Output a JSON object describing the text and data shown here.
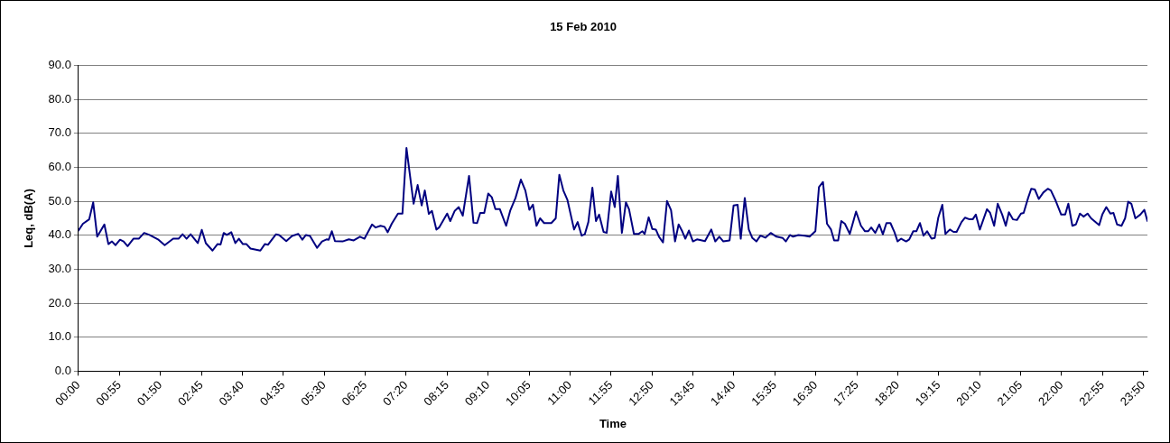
{
  "chart_data": {
    "type": "line",
    "title": "15 Feb 2010",
    "xlabel": "Time",
    "ylabel": "Leq, dB(A)",
    "xlim": [
      0,
      23.92
    ],
    "xticks": [
      {
        "value": 0,
        "label": "00:00"
      },
      {
        "value": 0.9167,
        "label": "00:55"
      },
      {
        "value": 1.8333,
        "label": "01:50"
      },
      {
        "value": 2.75,
        "label": "02:45"
      },
      {
        "value": 3.6667,
        "label": "03:40"
      },
      {
        "value": 4.5833,
        "label": "04:35"
      },
      {
        "value": 5.5,
        "label": "05:30"
      },
      {
        "value": 6.4167,
        "label": "06:25"
      },
      {
        "value": 7.3333,
        "label": "07:20"
      },
      {
        "value": 8.25,
        "label": "08:15"
      },
      {
        "value": 9.1667,
        "label": "09:10"
      },
      {
        "value": 10.0833,
        "label": "10:05"
      },
      {
        "value": 11,
        "label": "11:00"
      },
      {
        "value": 11.9167,
        "label": "11:55"
      },
      {
        "value": 12.8333,
        "label": "12:50"
      },
      {
        "value": 13.75,
        "label": "13:45"
      },
      {
        "value": 14.6667,
        "label": "14:40"
      },
      {
        "value": 15.5833,
        "label": "15:35"
      },
      {
        "value": 16.5,
        "label": "16:30"
      },
      {
        "value": 17.4167,
        "label": "17:25"
      },
      {
        "value": 18.3333,
        "label": "18:20"
      },
      {
        "value": 19.25,
        "label": "19:15"
      },
      {
        "value": 20.1667,
        "label": "20:10"
      },
      {
        "value": 21.0833,
        "label": "21:05"
      },
      {
        "value": 22,
        "label": "22:00"
      },
      {
        "value": 22.9167,
        "label": "22:55"
      },
      {
        "value": 23.8333,
        "label": "23:50"
      }
    ],
    "ylim": [
      0,
      90
    ],
    "yticks": [
      {
        "value": 0,
        "label": "0.0"
      },
      {
        "value": 10,
        "label": "10.0"
      },
      {
        "value": 20,
        "label": "20.0"
      },
      {
        "value": 30,
        "label": "30.0"
      },
      {
        "value": 40,
        "label": "40.0"
      },
      {
        "value": 50,
        "label": "50.0"
      },
      {
        "value": 60,
        "label": "60.0"
      },
      {
        "value": 70,
        "label": "70.0"
      },
      {
        "value": 80,
        "label": "80.0"
      },
      {
        "value": 90,
        "label": "90.0"
      }
    ],
    "grid": "y",
    "legend": false,
    "marker": "none",
    "line_style": "solid",
    "series": [
      {
        "color": "#000080",
        "x": [
          0,
          0.1,
          0.24,
          0.33,
          0.42,
          0.58,
          0.67,
          0.75,
          0.83,
          0.93,
          1.01,
          1.1,
          1.23,
          1.35,
          1.47,
          1.59,
          1.78,
          1.93,
          2.12,
          2.24,
          2.33,
          2.42,
          2.51,
          2.67,
          2.76,
          2.85,
          3.0,
          3.11,
          3.18,
          3.25,
          3.32,
          3.42,
          3.51,
          3.59,
          3.68,
          3.76,
          3.85,
          4.07,
          4.17,
          4.24,
          4.42,
          4.49,
          4.65,
          4.78,
          4.92,
          5.01,
          5.09,
          5.18,
          5.34,
          5.45,
          5.55,
          5.6,
          5.67,
          5.74,
          5.91,
          6.05,
          6.16,
          6.3,
          6.4,
          6.57,
          6.65,
          6.76,
          6.85,
          6.92,
          7.01,
          7.15,
          7.25,
          7.34,
          7.5,
          7.59,
          7.68,
          7.75,
          7.84,
          7.91,
          8.01,
          8.07,
          8.25,
          8.32,
          8.42,
          8.51,
          8.6,
          8.74,
          8.84,
          8.92,
          8.99,
          9.08,
          9.17,
          9.25,
          9.33,
          9.43,
          9.57,
          9.66,
          9.78,
          9.9,
          10.0,
          10.09,
          10.17,
          10.25,
          10.33,
          10.42,
          10.58,
          10.68,
          10.76,
          10.85,
          10.94,
          11.09,
          11.17,
          11.26,
          11.33,
          11.41,
          11.5,
          11.58,
          11.65,
          11.75,
          11.82,
          11.92,
          12.0,
          12.07,
          12.16,
          12.25,
          12.32,
          12.43,
          12.53,
          12.62,
          12.67,
          12.76,
          12.84,
          12.92,
          12.99,
          13.08,
          13.17,
          13.26,
          13.35,
          13.43,
          13.51,
          13.58,
          13.66,
          13.75,
          13.84,
          14.02,
          14.16,
          14.25,
          14.34,
          14.43,
          14.57,
          14.66,
          14.75,
          14.82,
          14.91,
          15.0,
          15.08,
          15.17,
          15.26,
          15.37,
          15.49,
          15.62,
          15.76,
          15.83,
          15.92,
          15.99,
          16.11,
          16.25,
          16.36,
          16.49,
          16.57,
          16.66,
          16.75,
          16.84,
          16.91,
          17.0,
          17.07,
          17.15,
          17.26,
          17.4,
          17.51,
          17.6,
          17.67,
          17.74,
          17.83,
          17.92,
          18.0,
          18.08,
          18.17,
          18.26,
          18.33,
          18.41,
          18.52,
          18.59,
          18.68,
          18.75,
          18.83,
          18.91,
          18.99,
          19.09,
          19.16,
          19.24,
          19.33,
          19.4,
          19.5,
          19.58,
          19.65,
          19.76,
          19.84,
          19.94,
          20.01,
          20.08,
          20.17,
          20.33,
          20.4,
          20.49,
          20.57,
          20.67,
          20.75,
          20.82,
          20.91,
          21.0,
          21.09,
          21.15,
          21.25,
          21.32,
          21.4,
          21.49,
          21.59,
          21.69,
          21.76,
          21.87,
          21.99,
          22.08,
          22.15,
          22.24,
          22.32,
          22.41,
          22.49,
          22.58,
          22.66,
          22.84,
          22.91,
          23.0,
          23.09,
          23.16,
          23.24,
          23.34,
          23.42,
          23.49,
          23.56,
          23.65,
          23.76,
          23.85,
          23.92
        ],
        "values": [
          41.4,
          43.4,
          44.7,
          49.7,
          39.6,
          43.2,
          37.4,
          38.2,
          37.1,
          38.7,
          38.2,
          36.8,
          39.0,
          39.0,
          40.7,
          40.1,
          38.8,
          37.1,
          39.0,
          39.0,
          40.3,
          39.0,
          40.3,
          37.7,
          41.6,
          37.7,
          35.5,
          37.4,
          37.3,
          40.7,
          40.1,
          40.9,
          37.7,
          39.0,
          37.4,
          37.4,
          36.1,
          35.5,
          37.4,
          37.2,
          40.3,
          40.1,
          38.3,
          39.8,
          40.4,
          38.7,
          40.1,
          39.8,
          36.3,
          38.2,
          38.8,
          38.7,
          41.2,
          38.3,
          38.2,
          38.8,
          38.5,
          39.6,
          39.0,
          43.2,
          42.3,
          42.8,
          42.5,
          40.9,
          43.4,
          46.4,
          46.4,
          65.7,
          49.3,
          54.8,
          48.8,
          53.2,
          46.3,
          47.2,
          41.7,
          42.3,
          46.4,
          44.2,
          47.2,
          48.3,
          45.8,
          57.5,
          43.7,
          43.6,
          46.6,
          46.6,
          52.3,
          51.2,
          47.7,
          47.7,
          42.8,
          47.2,
          51.0,
          56.4,
          53.2,
          47.5,
          49.0,
          42.8,
          45.0,
          43.6,
          43.6,
          45.0,
          57.8,
          53.2,
          50.5,
          41.7,
          43.9,
          39.9,
          40.3,
          43.9,
          54.0,
          44.2,
          46.1,
          41.0,
          40.7,
          52.9,
          48.3,
          57.5,
          40.7,
          49.7,
          47.7,
          40.4,
          40.4,
          41.2,
          40.4,
          45.3,
          41.9,
          41.7,
          39.6,
          37.9,
          50.1,
          47.4,
          38.2,
          43.2,
          41.2,
          39.0,
          41.4,
          38.2,
          38.8,
          38.3,
          41.7,
          38.2,
          39.6,
          38.2,
          38.5,
          48.8,
          49.0,
          39.0,
          51.0,
          41.7,
          39.2,
          38.2,
          39.9,
          39.3,
          40.7,
          39.6,
          39.2,
          38.2,
          40.1,
          39.6,
          40.1,
          39.9,
          39.6,
          41.2,
          54.2,
          55.7,
          43.4,
          41.7,
          38.5,
          38.5,
          44.2,
          43.4,
          40.4,
          47.0,
          42.8,
          41.2,
          41.2,
          42.3,
          40.7,
          43.2,
          40.3,
          43.6,
          43.6,
          40.9,
          38.2,
          39.0,
          38.2,
          38.8,
          41.2,
          41.2,
          43.6,
          39.9,
          41.2,
          39.0,
          39.2,
          45.2,
          49.0,
          40.4,
          41.7,
          41.0,
          41.0,
          43.9,
          45.2,
          44.7,
          44.7,
          46.1,
          41.7,
          47.7,
          46.6,
          42.8,
          49.3,
          46.1,
          42.8,
          46.8,
          44.7,
          44.5,
          46.4,
          46.6,
          51.0,
          53.7,
          53.5,
          50.7,
          52.6,
          53.7,
          53.2,
          50.1,
          46.1,
          46.1,
          49.3,
          42.8,
          43.2,
          46.4,
          45.5,
          46.4,
          45.0,
          43.0,
          46.1,
          48.3,
          46.4,
          46.6,
          43.2,
          42.8,
          45.0,
          49.9,
          49.3,
          45.0,
          46.1,
          47.5,
          44.2
        ]
      }
    ]
  }
}
